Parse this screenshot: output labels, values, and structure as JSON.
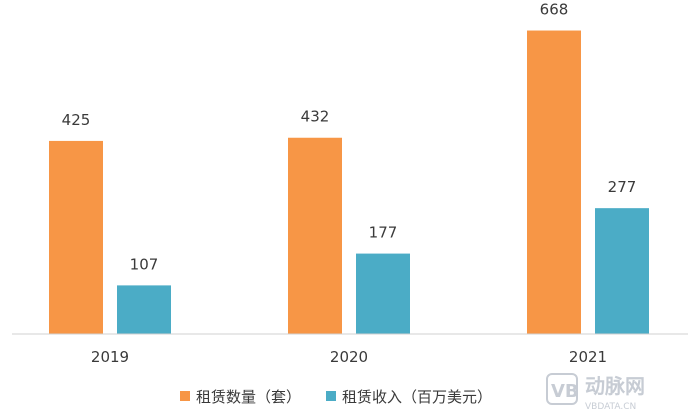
{
  "chart_data": {
    "type": "bar",
    "categories": [
      "2019",
      "2020",
      "2021"
    ],
    "series": [
      {
        "name": "租赁数量（套）",
        "values": [
          425,
          432,
          668
        ],
        "color": "#F79646"
      },
      {
        "name": "租赁收入（百万美元）",
        "values": [
          107,
          177,
          277
        ],
        "color": "#4BACC6"
      }
    ],
    "ylim": [
      0,
      700
    ],
    "grid": false,
    "legend_position": "bottom"
  },
  "watermark": {
    "brand": "动脉网",
    "site": "VBDATA.CN"
  }
}
